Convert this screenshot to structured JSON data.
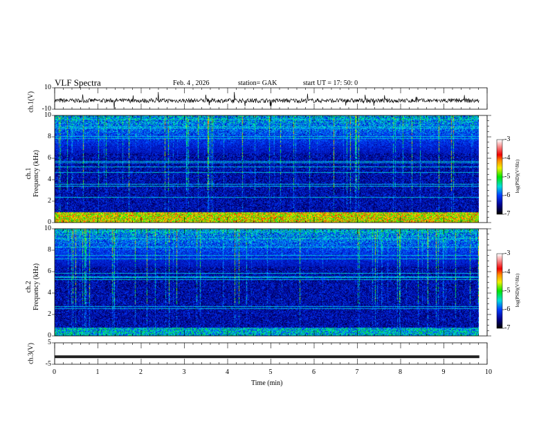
{
  "header": {
    "title": "VLF  Spectra",
    "date": "Feb. 4  , 2026",
    "station": "station= GAK",
    "start": "start  UT  =    17: 50: 0"
  },
  "chart_data": [
    {
      "type": "line",
      "name": "ch1",
      "ylabel": "ch.1(V)",
      "ylim": [
        -10,
        10
      ],
      "yticks": [
        "10",
        "-10"
      ],
      "xlim": [
        0,
        10
      ],
      "data_end_min": 9.82,
      "description_values": "noisy waveform around -2 V with spikes"
    },
    {
      "type": "heatmap",
      "name": "ch1-spectrogram",
      "ylabel": "Frequency  (kHz)",
      "ylabel2": "ch.1",
      "ylim": [
        0,
        10
      ],
      "yticks": [
        "0",
        "2",
        "4",
        "6",
        "8",
        "10"
      ],
      "xlim": [
        0,
        10
      ],
      "colorbar": {
        "label": "log(PSD)(V²/Hz)",
        "range": [
          -7,
          -3
        ],
        "ticks": [
          "-3",
          "-4",
          "-5",
          "-6",
          "-7"
        ]
      }
    },
    {
      "type": "heatmap",
      "name": "ch2-spectrogram",
      "ylabel": "Frequency  (kHz)",
      "ylabel2": "ch.2",
      "ylim": [
        0,
        10
      ],
      "yticks": [
        "0",
        "2",
        "4",
        "6",
        "8",
        "10"
      ],
      "xlim": [
        0,
        10
      ],
      "colorbar": {
        "label": "log(PSD)(V²/Hz)",
        "range": [
          -7,
          -3
        ],
        "ticks": [
          "-3",
          "-4",
          "-5",
          "-6",
          "-7"
        ]
      }
    },
    {
      "type": "line",
      "name": "ch3",
      "ylabel": "ch.3(V)",
      "ylim": [
        -5,
        5
      ],
      "yticks": [
        "5",
        "-5"
      ],
      "xlim": [
        0,
        10
      ],
      "constant_value": -1.5
    },
    {
      "xlabel": "Time  (min)",
      "xticks": [
        "0",
        "1",
        "2",
        "3",
        "4",
        "5",
        "6",
        "7",
        "8",
        "9",
        "10"
      ]
    }
  ]
}
